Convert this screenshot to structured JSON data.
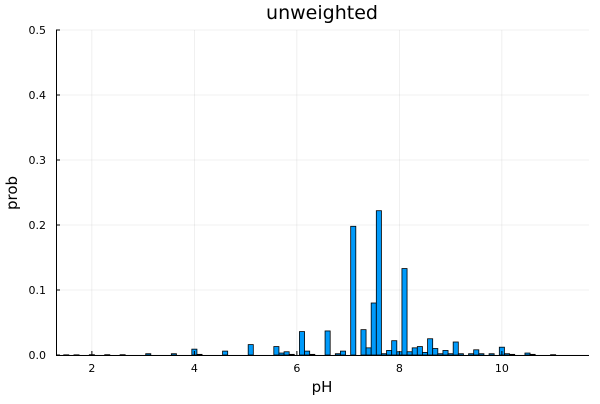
{
  "chart_data": {
    "type": "bar",
    "title": "unweighted",
    "xlabel": "pH",
    "ylabel": "prob",
    "xlim": [
      1.3,
      11.7
    ],
    "ylim": [
      0,
      0.5
    ],
    "bar_width": 0.1,
    "xticks": [
      2,
      4,
      6,
      8,
      10
    ],
    "yticks": [
      0.0,
      0.1,
      0.2,
      0.3,
      0.4,
      0.5
    ],
    "ytick_labels": [
      "0.0",
      "0.1",
      "0.2",
      "0.3",
      "0.4",
      "0.5"
    ],
    "grid": true,
    "legend": "none",
    "bar_color": "#009AFA",
    "x": [
      1.5,
      1.7,
      2.0,
      2.3,
      2.6,
      3.1,
      3.6,
      4.0,
      4.1,
      4.6,
      5.1,
      5.6,
      5.7,
      5.8,
      5.9,
      6.1,
      6.2,
      6.3,
      6.6,
      6.8,
      6.9,
      7.1,
      7.3,
      7.4,
      7.5,
      7.6,
      7.7,
      7.8,
      7.9,
      8.0,
      8.1,
      8.2,
      8.3,
      8.4,
      8.5,
      8.6,
      8.7,
      8.8,
      8.9,
      9.0,
      9.1,
      9.2,
      9.4,
      9.5,
      9.6,
      9.8,
      10.0,
      10.1,
      10.2,
      10.5,
      10.6,
      11.0
    ],
    "values": [
      0.0003,
      0.0003,
      0.0005,
      0.0005,
      0.0005,
      0.002,
      0.002,
      0.009,
      0.001,
      0.006,
      0.016,
      0.013,
      0.003,
      0.005,
      0.001,
      0.036,
      0.006,
      0.001,
      0.037,
      0.002,
      0.006,
      0.198,
      0.039,
      0.011,
      0.08,
      0.222,
      0.002,
      0.007,
      0.022,
      0.005,
      0.133,
      0.005,
      0.011,
      0.013,
      0.004,
      0.025,
      0.01,
      0.002,
      0.007,
      0.002,
      0.02,
      0.002,
      0.002,
      0.008,
      0.002,
      0.002,
      0.012,
      0.002,
      0.001,
      0.003,
      0.001,
      0.0005
    ]
  }
}
